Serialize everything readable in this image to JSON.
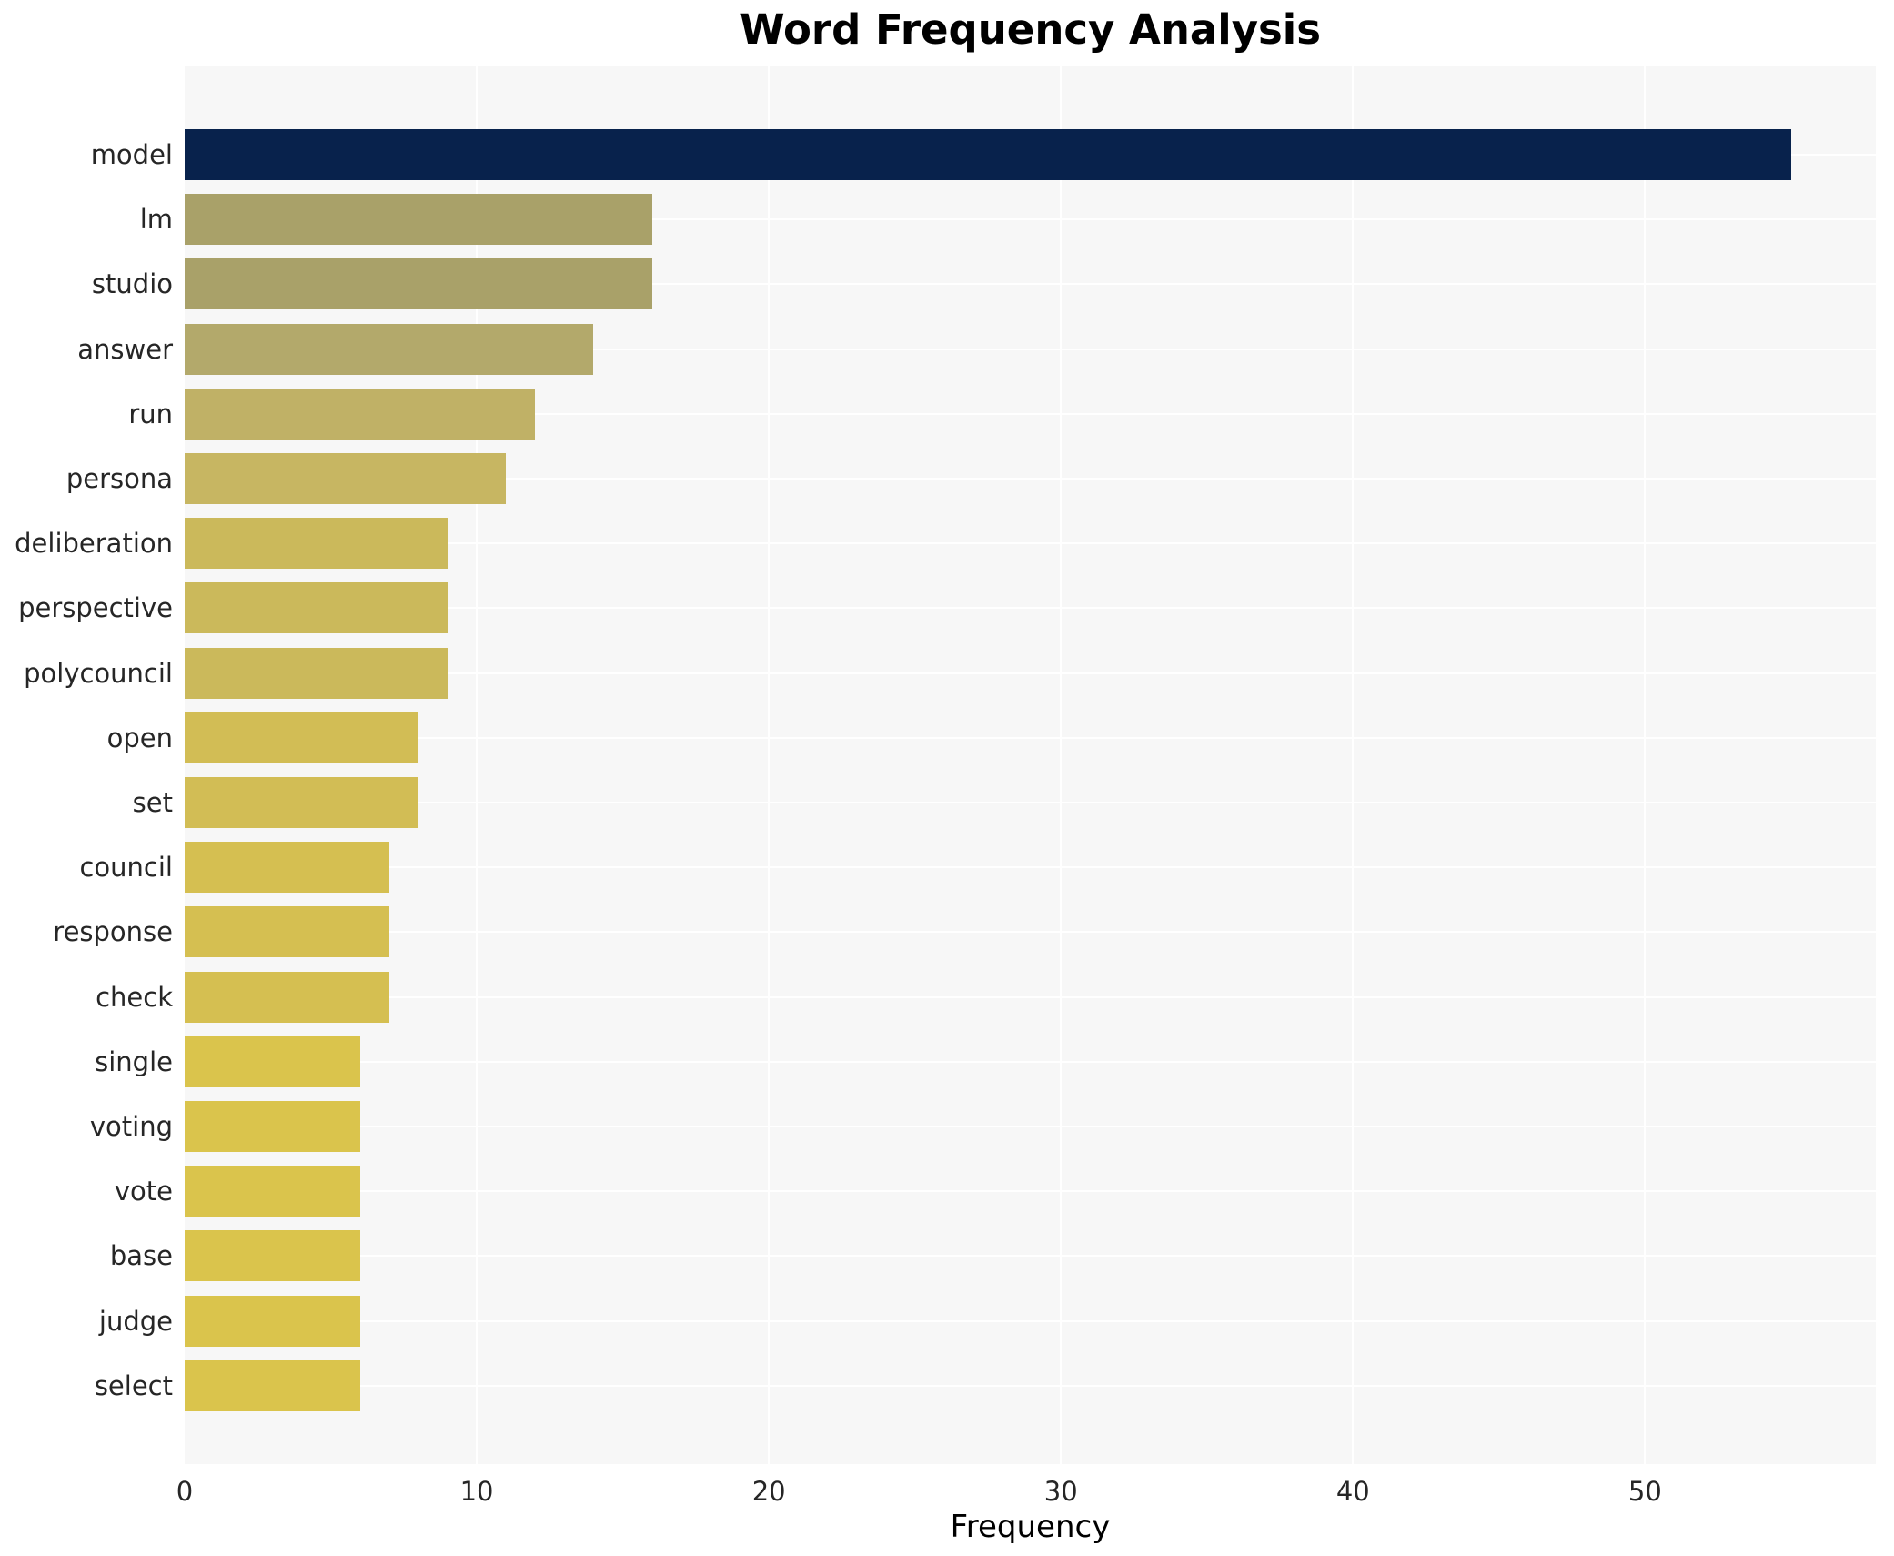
{
  "title": "Word Frequency Analysis",
  "chart_data": {
    "type": "bar",
    "orientation": "horizontal",
    "title": "Word Frequency Analysis",
    "xlabel": "Frequency",
    "ylabel": "",
    "categories": [
      "model",
      "lm",
      "studio",
      "answer",
      "run",
      "persona",
      "deliberation",
      "perspective",
      "polycouncil",
      "open",
      "set",
      "council",
      "response",
      "check",
      "single",
      "voting",
      "vote",
      "base",
      "judge",
      "select"
    ],
    "values": [
      55,
      16,
      16,
      14,
      12,
      11,
      9,
      9,
      9,
      8,
      8,
      7,
      7,
      7,
      6,
      6,
      6,
      6,
      6,
      6
    ],
    "bar_colors": [
      "#08224c",
      "#a9a169",
      "#a9a169",
      "#b3a96b",
      "#c0b166",
      "#c7b662",
      "#cbb95b",
      "#cbb95b",
      "#cbb95b",
      "#d2bd55",
      "#d2bd55",
      "#d5bf51",
      "#d5bf51",
      "#d5bf51",
      "#dac44c",
      "#dac44c",
      "#dac44c",
      "#dac44c",
      "#dac44c",
      "#dac44c"
    ],
    "x_ticks": [
      0,
      10,
      20,
      30,
      40,
      50
    ],
    "xlim": [
      0,
      57.9
    ],
    "grid": true,
    "legend": false,
    "panel_bg": "#f7f7f7",
    "gridline_color": "#ffffff",
    "tick_label_color": "#262626",
    "title_color": "#000000"
  }
}
